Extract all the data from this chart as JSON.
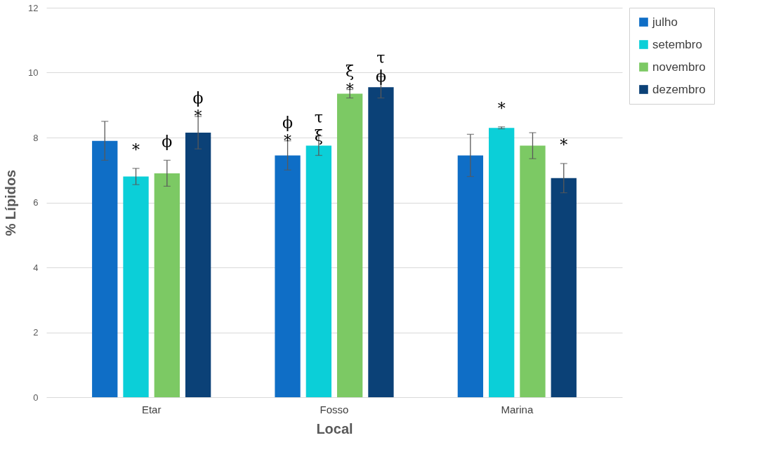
{
  "chart_data": {
    "type": "bar",
    "xlabel": "Local",
    "ylabel": "% Lípidos",
    "categories": [
      "Etar",
      "Fosso",
      "Marina"
    ],
    "series": [
      {
        "name": "julho",
        "color": "#0f6ec6",
        "values": [
          7.9,
          7.45,
          7.45
        ],
        "errors": [
          0.6,
          0.45,
          0.65
        ],
        "value_labels": [
          null,
          "ϕ\n*",
          null
        ]
      },
      {
        "name": "setembro",
        "color": "#0bcfd8",
        "values": [
          6.8,
          7.75,
          8.3
        ],
        "errors": [
          0.25,
          0.3,
          0.03
        ],
        "value_labels": [
          "*",
          "τ\nξ",
          "*"
        ]
      },
      {
        "name": "novembro",
        "color": "#7cc964",
        "values": [
          6.9,
          9.35,
          7.75
        ],
        "errors": [
          0.4,
          0.13,
          0.4
        ],
        "value_labels": [
          "ϕ",
          "ξ\n*",
          null
        ]
      },
      {
        "name": "dezembro",
        "color": "#0b4177",
        "values": [
          8.15,
          9.55,
          6.75
        ],
        "errors": [
          0.5,
          0.33,
          0.45
        ],
        "value_labels": [
          "ϕ\n*",
          "τ\nϕ",
          "*"
        ]
      }
    ],
    "ylim": [
      0,
      12
    ],
    "yticks": [
      0,
      2,
      4,
      6,
      8,
      10,
      12
    ],
    "grid": "y",
    "legend": "top right"
  }
}
